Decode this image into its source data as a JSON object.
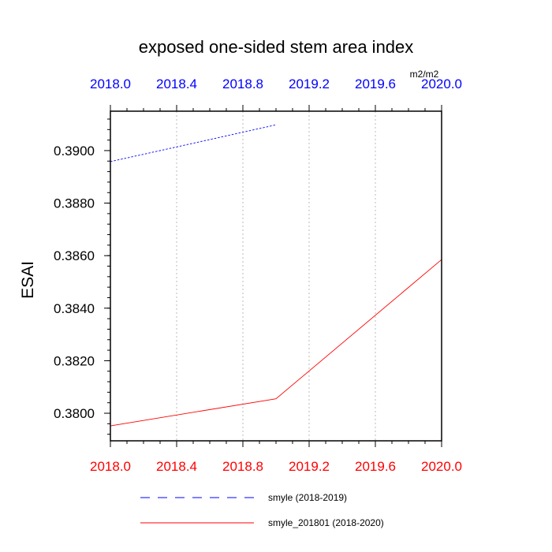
{
  "chart_data": {
    "type": "line",
    "title": "exposed one-sided stem area index",
    "units": "m2/m2",
    "ylabel": "ESAI",
    "xlim": [
      2018.0,
      2020.0
    ],
    "ylim": [
      0.37895,
      0.3915
    ],
    "grid": "vertical dotted",
    "x_ticks": [
      "2018.0",
      "2018.4",
      "2018.8",
      "2019.2",
      "2019.6",
      "2020.0"
    ],
    "x_tick_values": [
      2018.0,
      2018.4,
      2018.8,
      2019.2,
      2019.6,
      2020.0
    ],
    "y_ticks": [
      "0.3800",
      "0.3820",
      "0.3840",
      "0.3860",
      "0.3880",
      "0.3900"
    ],
    "y_tick_values": [
      0.38,
      0.382,
      0.384,
      0.386,
      0.388,
      0.39
    ],
    "series": [
      {
        "name": "smyle (2018-2019)",
        "axis": "top",
        "color": "#0000ff",
        "style": "dashed",
        "x": [
          2018.0,
          2019.0
        ],
        "y": [
          0.38958,
          0.39098
        ]
      },
      {
        "name": "smyle_201801 (2018-2020)",
        "axis": "bottom",
        "color": "#ff0000",
        "style": "solid",
        "x": [
          2018.0,
          2019.0,
          2020.0
        ],
        "y": [
          0.37952,
          0.38055,
          0.38585
        ]
      }
    ],
    "legend_position": "bottom"
  }
}
